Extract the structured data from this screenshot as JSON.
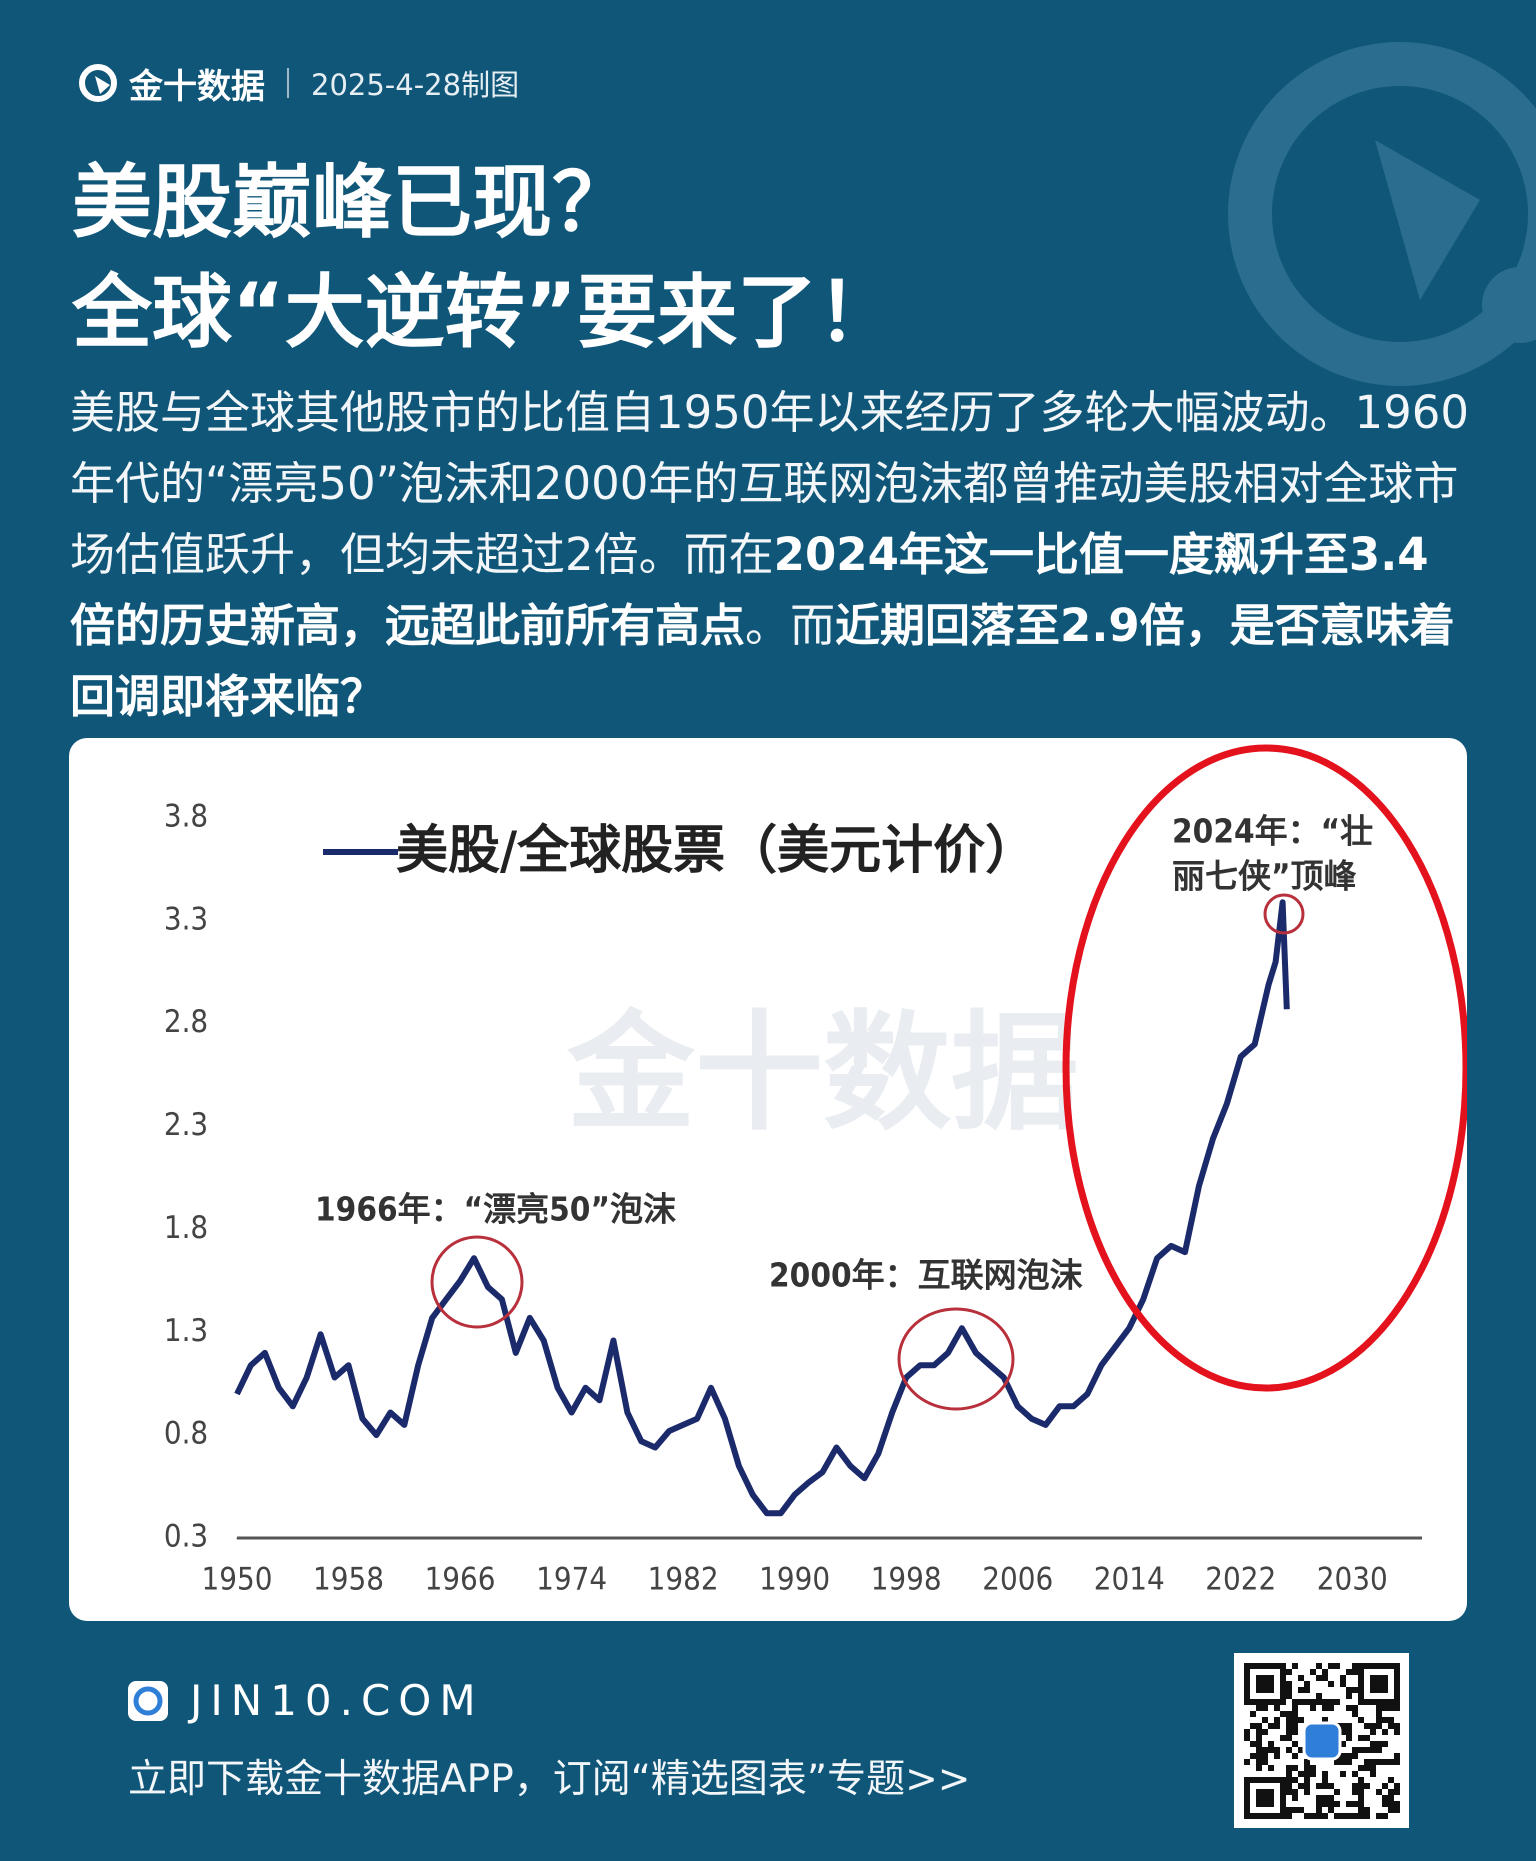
{
  "header": {
    "brand": "金十数据",
    "date": "2025-4-28制图"
  },
  "title": [
    "美股巅峰已现？",
    "全球“大逆转”要来了！"
  ],
  "intro": [
    {
      "text": "美股与全球其他股市的比值自1950年以来经历了多轮大幅波动。1960年代的“漂亮50”泡沫和2000年的互联网泡沫都曾推动美股相对全球市场估值跃升，但均未超过2倍。而在",
      "bold": false
    },
    {
      "text": "2024年这一比值一度飙升至3.4倍的历史新高，远超此前所有高点",
      "bold": true
    },
    {
      "text": "。而",
      "bold": false
    },
    {
      "text": "近期回落至2.9倍，是否意味着回调即将来临？",
      "bold": true
    }
  ],
  "chart_data": {
    "type": "line",
    "watermark": "金十数据",
    "x": [
      1950,
      1951,
      1952,
      1953,
      1954,
      1955,
      1956,
      1957,
      1958,
      1959,
      1960,
      1961,
      1962,
      1963,
      1964,
      1965,
      1966,
      1967,
      1968,
      1969,
      1970,
      1971,
      1972,
      1973,
      1974,
      1975,
      1976,
      1977,
      1978,
      1979,
      1980,
      1981,
      1982,
      1983,
      1984,
      1985,
      1986,
      1987,
      1988,
      1989,
      1990,
      1991,
      1992,
      1993,
      1994,
      1995,
      1996,
      1997,
      1998,
      1999,
      2000,
      2001,
      2002,
      2003,
      2004,
      2005,
      2006,
      2007,
      2008,
      2009,
      2010,
      2011,
      2012,
      2013,
      2014,
      2015,
      2016,
      2017,
      2018,
      2019,
      2020,
      2021,
      2022,
      2023,
      2024,
      2024.5,
      2025,
      2025.3
    ],
    "series": [
      {
        "name": "美股/全球股票（美元计价）",
        "color": "#1b2a6b",
        "values": [
          1.0,
          1.14,
          1.2,
          1.03,
          0.94,
          1.08,
          1.29,
          1.08,
          1.14,
          0.88,
          0.8,
          0.91,
          0.85,
          1.14,
          1.37,
          1.46,
          1.55,
          1.66,
          1.52,
          1.46,
          1.2,
          1.37,
          1.26,
          1.03,
          0.91,
          1.03,
          0.97,
          1.26,
          0.91,
          0.77,
          0.74,
          0.82,
          0.85,
          0.88,
          1.03,
          0.88,
          0.65,
          0.51,
          0.42,
          0.42,
          0.51,
          0.57,
          0.62,
          0.74,
          0.65,
          0.59,
          0.71,
          0.91,
          1.08,
          1.14,
          1.14,
          1.2,
          1.32,
          1.2,
          1.14,
          1.08,
          0.94,
          0.88,
          0.85,
          0.94,
          0.94,
          1.0,
          1.14,
          1.23,
          1.32,
          1.46,
          1.66,
          1.72,
          1.69,
          2.01,
          2.24,
          2.41,
          2.64,
          2.7,
          2.99,
          3.1,
          3.39,
          2.87
        ]
      }
    ],
    "xlim": [
      1950,
      2035
    ],
    "xticks": [
      1950,
      1958,
      1966,
      1974,
      1982,
      1990,
      1998,
      2006,
      2014,
      2022,
      2030
    ],
    "ylim": [
      0.3,
      3.8
    ],
    "yticks": [
      0.3,
      0.8,
      1.3,
      1.8,
      2.3,
      2.8,
      3.3,
      3.8
    ],
    "grid": false,
    "annotations": [
      [
        "1966年：“漂亮50”泡沫"
      ],
      [
        "2000年：互联网泡沫"
      ],
      [
        "2024年：“壮",
        "丽七侠”顶峰"
      ]
    ]
  },
  "footer": {
    "site": "JIN10.COM",
    "cta": "立即下载金十数据APP，订阅“精选图表”专题>>"
  }
}
